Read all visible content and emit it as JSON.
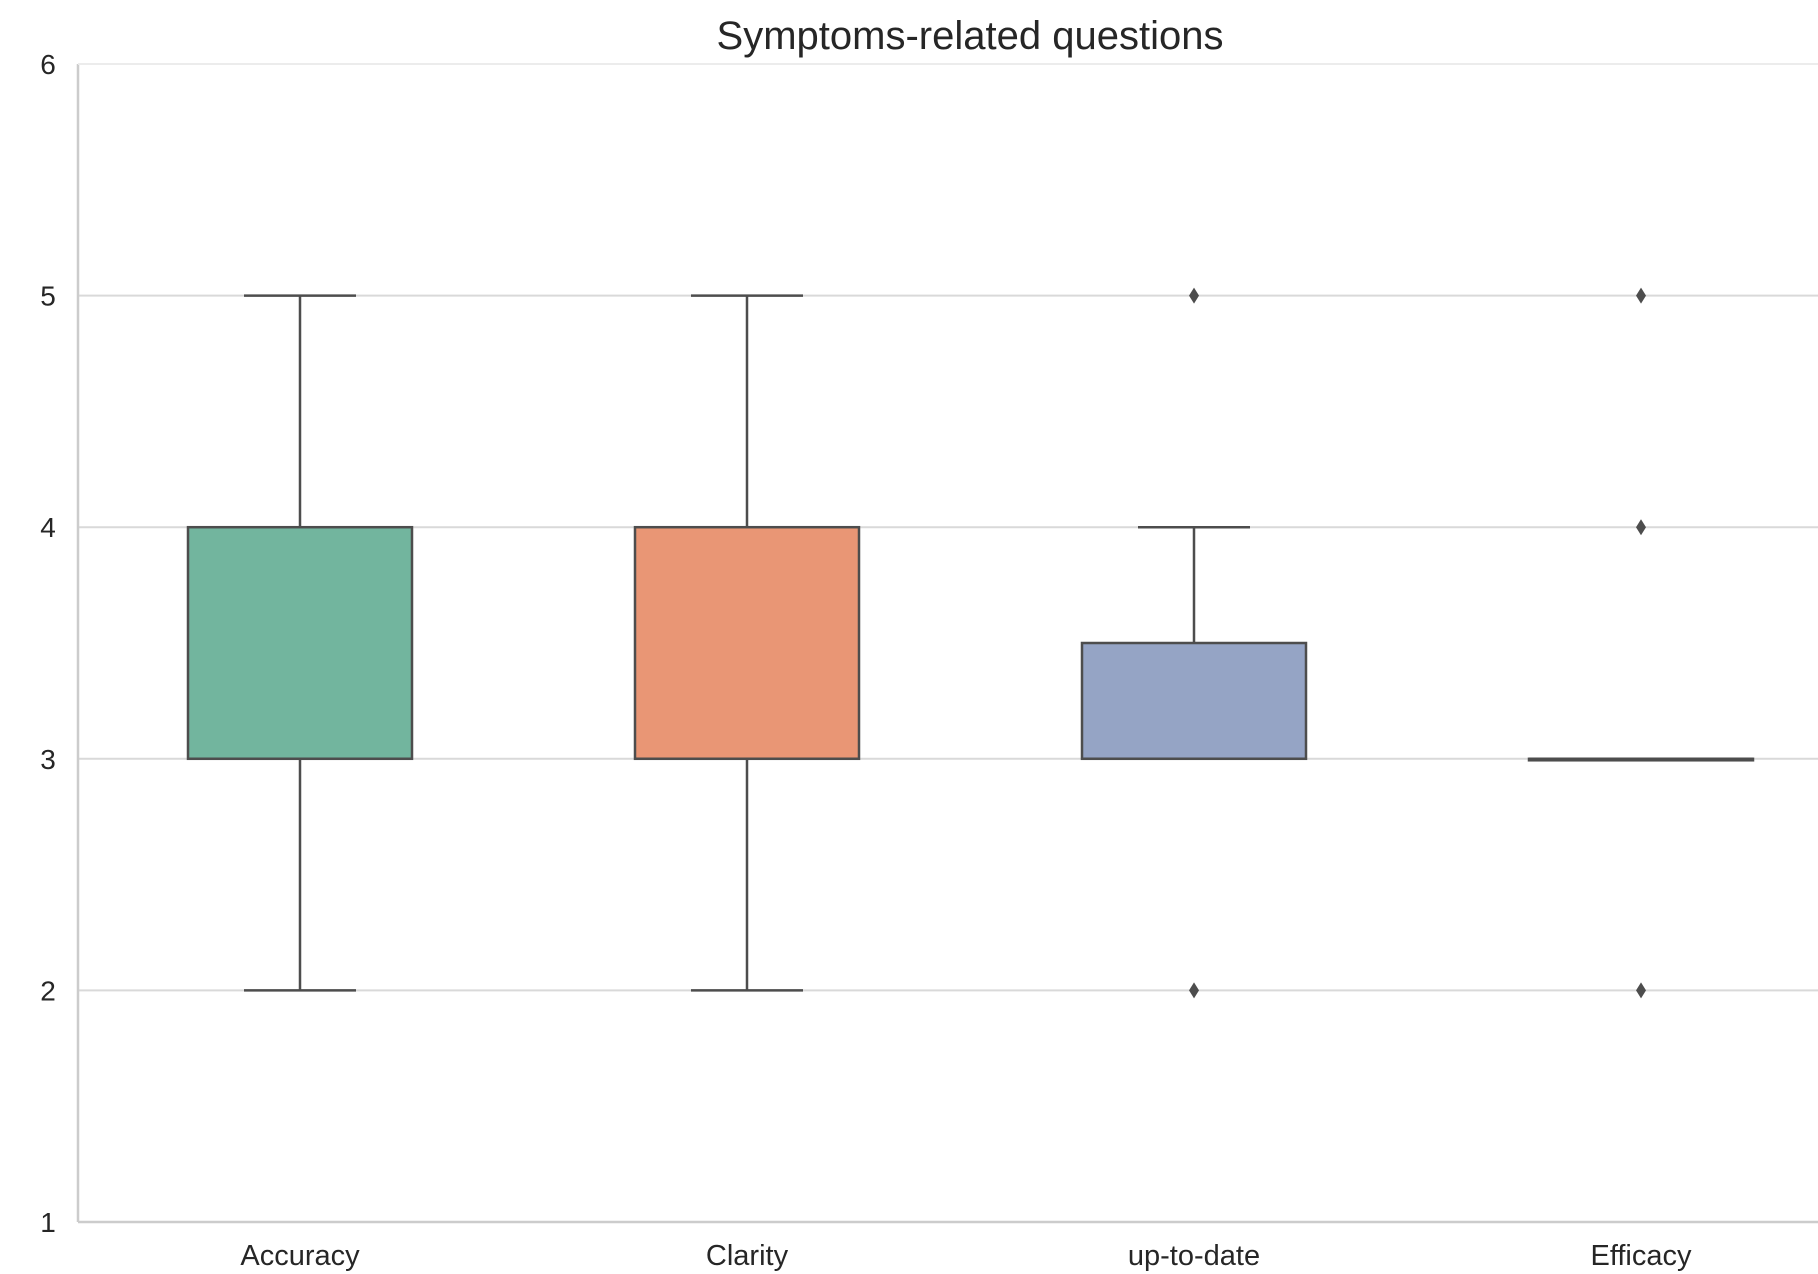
{
  "chart_data": {
    "type": "box",
    "title": "Symptoms-related questions",
    "xlabel": "",
    "ylabel": "",
    "ylim": [
      1,
      6
    ],
    "yticks": [
      "1",
      "2",
      "3",
      "4",
      "5",
      "6"
    ],
    "grid": "horizontal",
    "categories": [
      "Accuracy",
      "Clarity",
      "up-to-date",
      "Efficacy"
    ],
    "boxes": [
      {
        "category": "Accuracy",
        "whisker_low": 2,
        "q1": 3,
        "median": 3,
        "q3": 4,
        "whisker_high": 5,
        "outliers": [],
        "color": "#72b59e"
      },
      {
        "category": "Clarity",
        "whisker_low": 2,
        "q1": 3,
        "median": 3,
        "q3": 4,
        "whisker_high": 5,
        "outliers": [],
        "color": "#e99675"
      },
      {
        "category": "up-to-date",
        "whisker_low": 3,
        "q1": 3,
        "median": 3,
        "q3": 3.5,
        "whisker_high": 4,
        "outliers": [
          2,
          5
        ],
        "color": "#95a4c5"
      },
      {
        "category": "Efficacy",
        "whisker_low": 3,
        "q1": 3,
        "median": 3,
        "q3": 3,
        "whisker_high": 3,
        "outliers": [
          2,
          4,
          5
        ],
        "color": "#a7d28d"
      }
    ],
    "colors": {
      "line": "#4d4d4d",
      "grid": "#d9d9d9",
      "axis": "#cccccc"
    }
  }
}
